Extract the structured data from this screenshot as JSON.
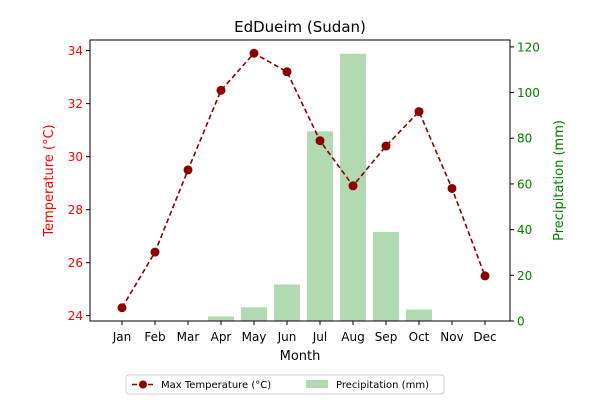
{
  "chart_data": {
    "type": "bar",
    "title": "EdDueim (Sudan)",
    "xlabel": "Month",
    "categories": [
      "Jan",
      "Feb",
      "Mar",
      "Apr",
      "May",
      "Jun",
      "Jul",
      "Aug",
      "Sep",
      "Oct",
      "Nov",
      "Dec"
    ],
    "left_axis": {
      "label": "Temperature (°C)",
      "color": "#ff0000",
      "ylim": [
        23.8,
        34.4
      ],
      "ticks": [
        24,
        26,
        28,
        30,
        32,
        34
      ]
    },
    "right_axis": {
      "label": "Precipitation (mm)",
      "color": "#008000",
      "ylim": [
        0,
        123
      ],
      "ticks": [
        0,
        20,
        40,
        60,
        80,
        100,
        120
      ]
    },
    "series": [
      {
        "name": "Max Temperature (°C)",
        "type": "line",
        "axis": "left",
        "color": "#8b0000",
        "line_style": "dashed",
        "marker": "circle",
        "values": [
          24.3,
          26.4,
          29.5,
          32.5,
          33.9,
          33.2,
          30.6,
          28.9,
          30.4,
          31.7,
          28.8,
          25.5
        ]
      },
      {
        "name": "Precipitation (mm)",
        "type": "bar",
        "axis": "right",
        "color": "#b2dab2",
        "values": [
          0,
          0,
          0,
          2,
          6,
          16,
          83,
          117,
          39,
          5,
          0,
          0
        ]
      }
    ],
    "legend": {
      "placement": "bottom-center",
      "entries": [
        "Max Temperature (°C)",
        "Precipitation (mm)"
      ]
    },
    "grid": false
  }
}
